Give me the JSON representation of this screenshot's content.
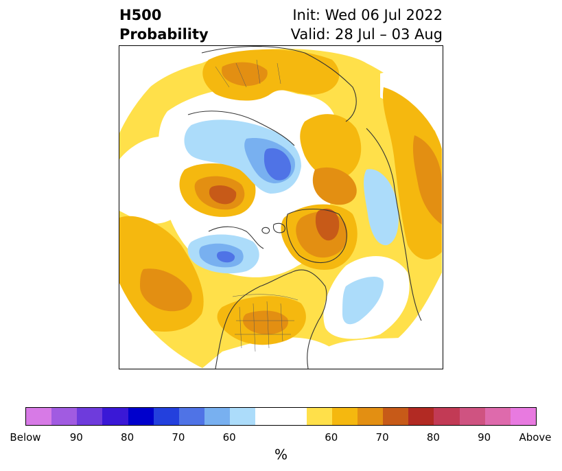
{
  "title": {
    "left_line1": "H500",
    "left_line2": "Probability",
    "right_line1": "Init: Wed 06 Jul 2022",
    "right_line2": "Valid: 28 Jul – 03 Aug"
  },
  "colorbar": {
    "colors": [
      "#d77ae6",
      "#a15be1",
      "#6e3bdc",
      "#3a18d6",
      "#0000cc",
      "#2340dd",
      "#4f73e6",
      "#78b0f0",
      "#acdcfa",
      "#ffffff",
      "#ffe04a",
      "#f5b80f",
      "#e38f12",
      "#c75a18",
      "#b22a23",
      "#c23a55",
      "#cf5381",
      "#de6aac",
      "#e87ae0"
    ],
    "tick_labels": [
      "Below",
      "90",
      "80",
      "70",
      "60",
      "60",
      "70",
      "80",
      "90",
      "Above"
    ],
    "unit_label": "%"
  },
  "map": {
    "projection": "north polar stereographic",
    "colors": {
      "light_yellow": "#ffe04a",
      "yellow_orange": "#f5b80f",
      "orange": "#e38f12",
      "dark_orange": "#c75a18",
      "light_blue": "#acdcfa",
      "mid_blue": "#78b0f0",
      "blue": "#4f73e6",
      "coastline": "#333333"
    }
  }
}
